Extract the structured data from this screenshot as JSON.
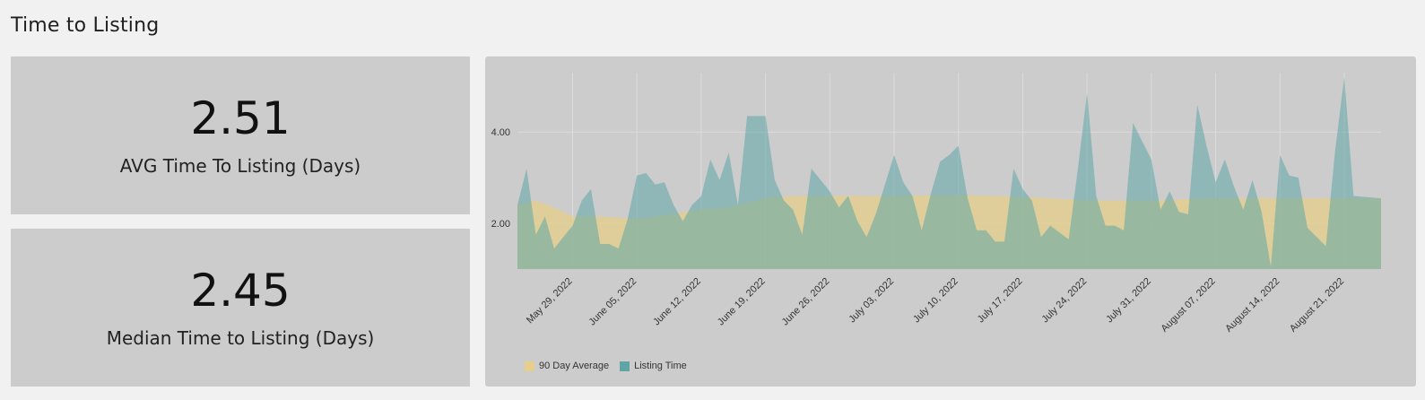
{
  "page": {
    "title": "Time to Listing"
  },
  "kpis": {
    "avg": {
      "value": "2.51",
      "label": "AVG Time To Listing (Days)"
    },
    "median": {
      "value": "2.45",
      "label": "Median Time to Listing (Days)"
    }
  },
  "chart_data": {
    "type": "area",
    "y_ticks": [
      {
        "value": 2,
        "label": "2.00"
      },
      {
        "value": 4,
        "label": "4.00"
      }
    ],
    "ylim": [
      1,
      5.3
    ],
    "x_start": "2022-05-23",
    "x_end": "2022-08-25",
    "x_ticks": [
      {
        "date": "2022-05-29",
        "label": "May 29, 2022"
      },
      {
        "date": "2022-06-05",
        "label": "June 05, 2022"
      },
      {
        "date": "2022-06-12",
        "label": "June 12, 2022"
      },
      {
        "date": "2022-06-19",
        "label": "June 19, 2022"
      },
      {
        "date": "2022-06-26",
        "label": "June 26, 2022"
      },
      {
        "date": "2022-07-03",
        "label": "July 03, 2022"
      },
      {
        "date": "2022-07-10",
        "label": "July 10, 2022"
      },
      {
        "date": "2022-07-17",
        "label": "July 17, 2022"
      },
      {
        "date": "2022-07-24",
        "label": "July 24, 2022"
      },
      {
        "date": "2022-07-31",
        "label": "July 31, 2022"
      },
      {
        "date": "2022-08-07",
        "label": "August 07, 2022"
      },
      {
        "date": "2022-08-14",
        "label": "August 14, 2022"
      },
      {
        "date": "2022-08-21",
        "label": "August 21, 2022"
      }
    ],
    "grid": true,
    "legend_position": "bottom-left",
    "series": [
      {
        "name": "90 Day Average",
        "color": "#e6cf8a",
        "points": [
          [
            "2022-05-23",
            2.4
          ],
          [
            "2022-05-25",
            2.5
          ],
          [
            "2022-05-27",
            2.35
          ],
          [
            "2022-05-29",
            2.15
          ],
          [
            "2022-06-01",
            2.15
          ],
          [
            "2022-06-05",
            2.1
          ],
          [
            "2022-06-07",
            2.15
          ],
          [
            "2022-06-12",
            2.3
          ],
          [
            "2022-06-15",
            2.35
          ],
          [
            "2022-06-19",
            2.55
          ],
          [
            "2022-06-22",
            2.6
          ],
          [
            "2022-06-26",
            2.6
          ],
          [
            "2022-07-03",
            2.6
          ],
          [
            "2022-07-10",
            2.62
          ],
          [
            "2022-07-17",
            2.58
          ],
          [
            "2022-07-24",
            2.5
          ],
          [
            "2022-07-31",
            2.5
          ],
          [
            "2022-08-07",
            2.55
          ],
          [
            "2022-08-14",
            2.55
          ],
          [
            "2022-08-21",
            2.55
          ],
          [
            "2022-08-25",
            2.55
          ]
        ]
      },
      {
        "name": "Listing Time",
        "color": "#5fa5a5",
        "points": [
          [
            "2022-05-23",
            2.4
          ],
          [
            "2022-05-24",
            3.2
          ],
          [
            "2022-05-25",
            1.75
          ],
          [
            "2022-05-26",
            2.15
          ],
          [
            "2022-05-27",
            1.45
          ],
          [
            "2022-05-28",
            1.7
          ],
          [
            "2022-05-29",
            1.95
          ],
          [
            "2022-05-30",
            2.5
          ],
          [
            "2022-05-31",
            2.75
          ],
          [
            "2022-06-01",
            1.55
          ],
          [
            "2022-06-02",
            1.55
          ],
          [
            "2022-06-03",
            1.45
          ],
          [
            "2022-06-04",
            2.1
          ],
          [
            "2022-06-05",
            3.05
          ],
          [
            "2022-06-06",
            3.1
          ],
          [
            "2022-06-07",
            2.85
          ],
          [
            "2022-06-08",
            2.9
          ],
          [
            "2022-06-09",
            2.4
          ],
          [
            "2022-06-10",
            2.05
          ],
          [
            "2022-06-11",
            2.4
          ],
          [
            "2022-06-12",
            2.6
          ],
          [
            "2022-06-13",
            3.4
          ],
          [
            "2022-06-14",
            2.95
          ],
          [
            "2022-06-15",
            3.55
          ],
          [
            "2022-06-16",
            2.4
          ],
          [
            "2022-06-17",
            4.35
          ],
          [
            "2022-06-18",
            4.35
          ],
          [
            "2022-06-19",
            4.35
          ],
          [
            "2022-06-20",
            2.95
          ],
          [
            "2022-06-21",
            2.5
          ],
          [
            "2022-06-22",
            2.3
          ],
          [
            "2022-06-23",
            1.75
          ],
          [
            "2022-06-24",
            3.2
          ],
          [
            "2022-06-25",
            2.95
          ],
          [
            "2022-06-26",
            2.7
          ],
          [
            "2022-06-27",
            2.35
          ],
          [
            "2022-06-28",
            2.6
          ],
          [
            "2022-06-29",
            2.05
          ],
          [
            "2022-06-30",
            1.7
          ],
          [
            "2022-07-01",
            2.2
          ],
          [
            "2022-07-02",
            2.85
          ],
          [
            "2022-07-03",
            3.5
          ],
          [
            "2022-07-04",
            2.9
          ],
          [
            "2022-07-05",
            2.6
          ],
          [
            "2022-07-06",
            1.85
          ],
          [
            "2022-07-07",
            2.65
          ],
          [
            "2022-07-08",
            3.35
          ],
          [
            "2022-07-09",
            3.5
          ],
          [
            "2022-07-10",
            3.7
          ],
          [
            "2022-07-11",
            2.55
          ],
          [
            "2022-07-12",
            1.85
          ],
          [
            "2022-07-13",
            1.85
          ],
          [
            "2022-07-14",
            1.6
          ],
          [
            "2022-07-15",
            1.6
          ],
          [
            "2022-07-16",
            3.2
          ],
          [
            "2022-07-17",
            2.75
          ],
          [
            "2022-07-18",
            2.5
          ],
          [
            "2022-07-19",
            1.7
          ],
          [
            "2022-07-20",
            1.95
          ],
          [
            "2022-07-21",
            1.8
          ],
          [
            "2022-07-22",
            1.65
          ],
          [
            "2022-07-23",
            3.2
          ],
          [
            "2022-07-24",
            4.85
          ],
          [
            "2022-07-25",
            2.6
          ],
          [
            "2022-07-26",
            1.95
          ],
          [
            "2022-07-27",
            1.95
          ],
          [
            "2022-07-28",
            1.85
          ],
          [
            "2022-07-29",
            4.2
          ],
          [
            "2022-07-30",
            3.8
          ],
          [
            "2022-07-31",
            3.4
          ],
          [
            "2022-08-01",
            2.3
          ],
          [
            "2022-08-02",
            2.7
          ],
          [
            "2022-08-03",
            2.25
          ],
          [
            "2022-08-04",
            2.2
          ],
          [
            "2022-08-05",
            4.6
          ],
          [
            "2022-08-06",
            3.7
          ],
          [
            "2022-08-07",
            2.9
          ],
          [
            "2022-08-08",
            3.4
          ],
          [
            "2022-08-09",
            2.8
          ],
          [
            "2022-08-10",
            2.3
          ],
          [
            "2022-08-11",
            2.95
          ],
          [
            "2022-08-12",
            2.25
          ],
          [
            "2022-08-13",
            1.05
          ],
          [
            "2022-08-14",
            3.5
          ],
          [
            "2022-08-15",
            3.05
          ],
          [
            "2022-08-16",
            3.0
          ],
          [
            "2022-08-17",
            1.9
          ],
          [
            "2022-08-18",
            1.7
          ],
          [
            "2022-08-19",
            1.5
          ],
          [
            "2022-08-20",
            3.6
          ],
          [
            "2022-08-21",
            5.2
          ],
          [
            "2022-08-22",
            2.6
          ],
          [
            "2022-08-25",
            2.55
          ]
        ]
      }
    ]
  }
}
